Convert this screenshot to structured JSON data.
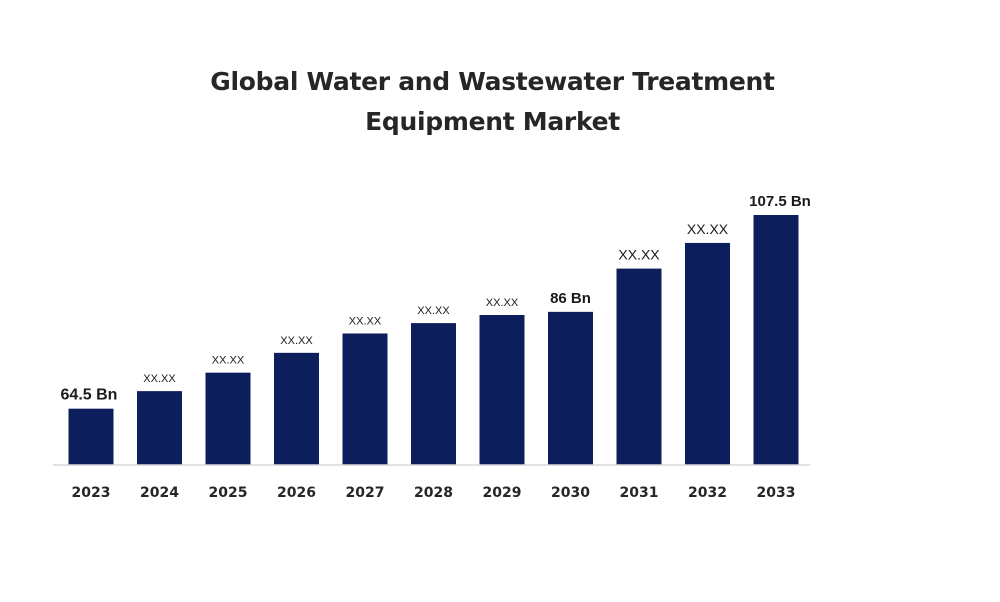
{
  "chart_data": {
    "type": "bar",
    "title_line1": "Global Water and Wastewater Treatment",
    "title_line2": "Equipment Market",
    "xlabel": "",
    "ylabel": "",
    "categories": [
      "2023",
      "2024",
      "2025",
      "2026",
      "2027",
      "2028",
      "2029",
      "2030",
      "2031",
      "2032",
      "2033"
    ],
    "values": [
      64.5,
      68.4,
      72.5,
      76.9,
      81.2,
      83.5,
      85.3,
      86,
      95.6,
      101.3,
      107.5
    ],
    "data_labels": [
      "64.5 Bn",
      "XX.XX",
      "XX.XX",
      "XX.XX",
      "XX.XX",
      "XX.XX",
      "XX.XX",
      "86 Bn",
      "XX.XX",
      "XX.XX",
      "107.5 Bn"
    ],
    "ylim": [
      52,
      110
    ],
    "grid": false,
    "legend": "none",
    "colors": {
      "bar": "#0c1f5c",
      "title": "#262626",
      "axis": "#d9d9d9"
    }
  }
}
